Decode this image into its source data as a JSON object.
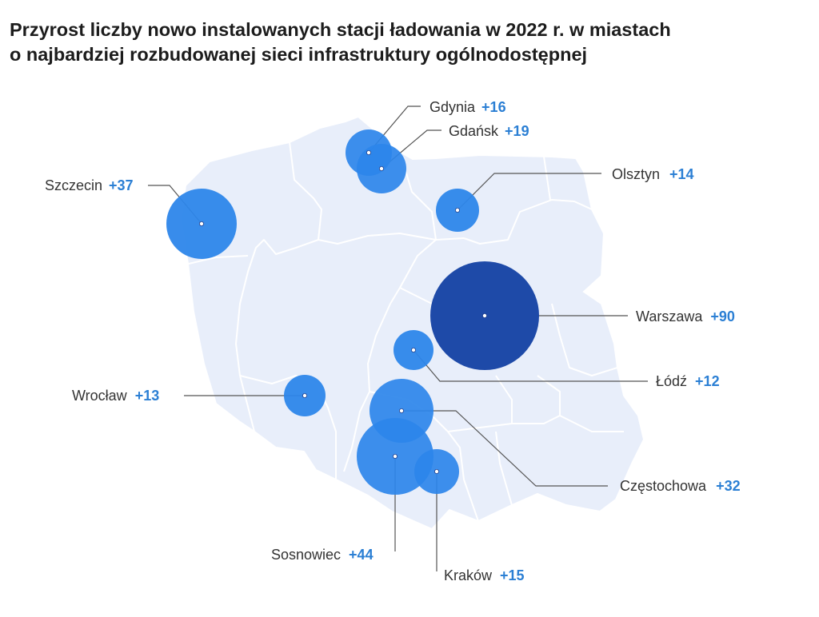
{
  "title": {
    "line1": "Przyrost liczby nowo instalowanych stacji ładowania w 2022 r. w miastach",
    "line2": "o najbardziej rozbudowanej sieci infrastruktury ogólnodostępnej"
  },
  "colors": {
    "map_fill": "#e8eefa",
    "map_border": "#ffffff",
    "bubble": "#2d86ea",
    "bubble_highlight": "#1e4aa8",
    "leader": "#555555",
    "value_text": "#2b7fd4"
  },
  "cities": [
    {
      "name": "Gdynia",
      "value": 16,
      "value_label": "+16"
    },
    {
      "name": "Gdańsk",
      "value": 19,
      "value_label": "+19"
    },
    {
      "name": "Olsztyn",
      "value": 14,
      "value_label": "+14"
    },
    {
      "name": "Szczecin",
      "value": 37,
      "value_label": "+37"
    },
    {
      "name": "Warszawa",
      "value": 90,
      "value_label": "+90"
    },
    {
      "name": "Łódź",
      "value": 12,
      "value_label": "+12"
    },
    {
      "name": "Wrocław",
      "value": 13,
      "value_label": "+13"
    },
    {
      "name": "Częstochowa",
      "value": 32,
      "value_label": "+32"
    },
    {
      "name": "Sosnowiec",
      "value": 44,
      "value_label": "+44"
    },
    {
      "name": "Kraków",
      "value": 15,
      "value_label": "+15"
    }
  ]
}
